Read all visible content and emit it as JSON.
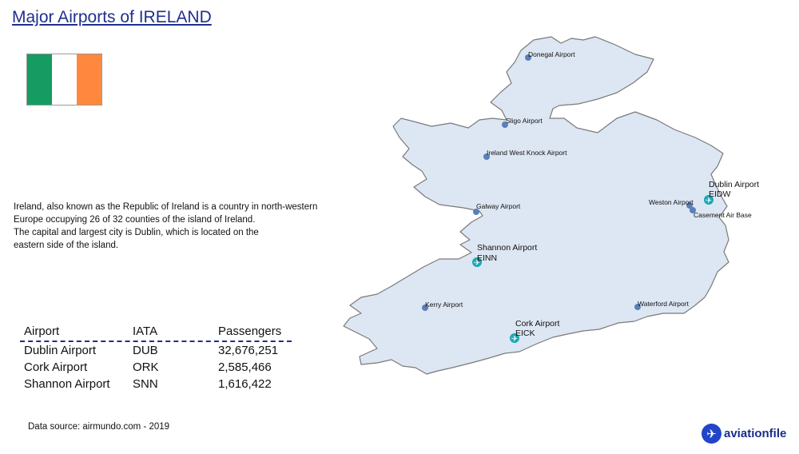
{
  "title": "Major Airports of IRELAND",
  "flag": {
    "colors": [
      "#169b62",
      "#ffffff",
      "#ff883e"
    ]
  },
  "description": [
    "Ireland, also known as the Republic of Ireland is a country in north-western",
    "Europe occupying 26 of 32 counties of the island of Ireland.",
    "The capital and largest city is Dublin, which is located on the",
    "eastern side of the island."
  ],
  "table": {
    "headers": [
      "Airport",
      "IATA",
      "Passengers"
    ],
    "rows": [
      [
        "Dublin Airport",
        "DUB",
        "32,676,251"
      ],
      [
        "Cork Airport",
        "ORK",
        "2,585,466"
      ],
      [
        "Shannon Airport",
        "SNN",
        "1,616,422"
      ]
    ]
  },
  "source": "Data source: airmundo.com - 2019",
  "map": {
    "small_airports": [
      "Donegal Airport",
      "Sligo Airport",
      "Ireland West Knock Airport",
      "Galway Airport",
      "Weston Airport",
      "Casement Air Base",
      "Kerry Airport",
      "Waterford Airport"
    ],
    "major_airports": [
      {
        "name": "Dublin Airport",
        "code": "EIDW"
      },
      {
        "name": "Shannon Airport",
        "code": "EINN"
      },
      {
        "name": "Cork Airport",
        "code": "EICK"
      }
    ],
    "colors": {
      "land": "#dde6f3",
      "outline": "#7a7a7a",
      "small_marker": "#5b7fb8",
      "major_marker": "#19a7b4"
    }
  },
  "logo": {
    "icon": "airplane-icon",
    "text": "aviationfile"
  }
}
